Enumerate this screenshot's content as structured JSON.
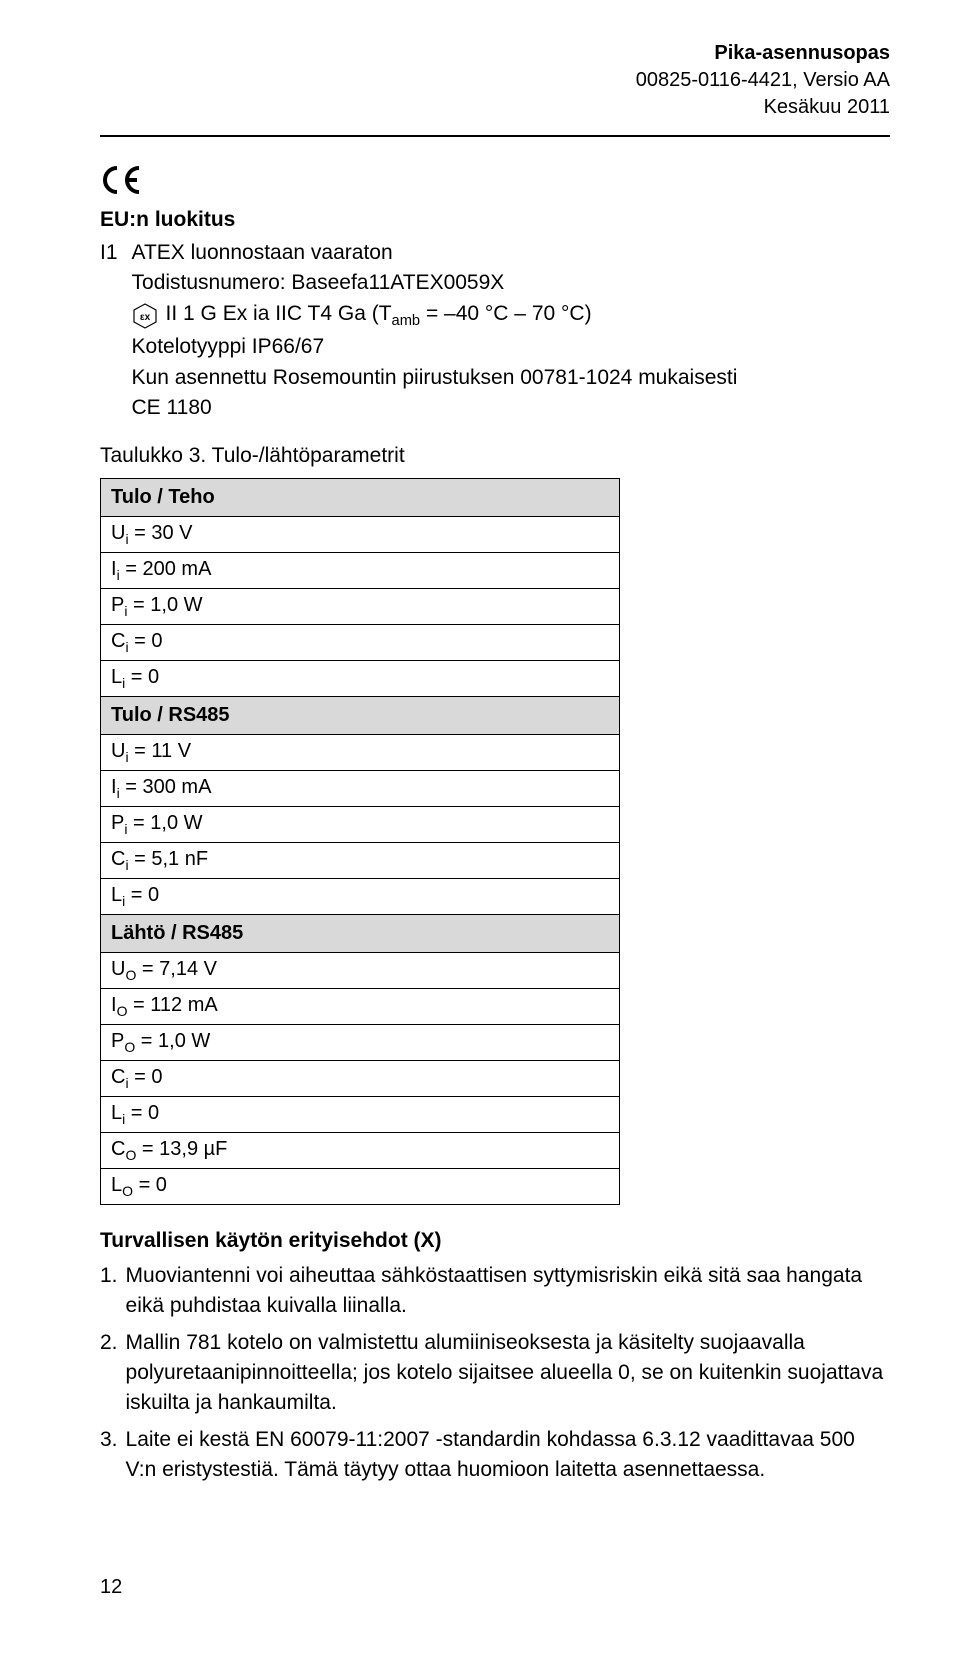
{
  "header": {
    "title": "Pika-asennusopas",
    "doc_number": "00825-0116-4421, Versio AA",
    "date": "Kesäkuu 2011"
  },
  "section_title": "EU:n luokitus",
  "cert": {
    "id": "I1",
    "line1": "ATEX luonnostaan vaaraton",
    "line2": "Todistusnumero: Baseefa11ATEX0059X",
    "ex_text": "II 1 G Ex ia IIC T4 Ga (T",
    "ex_sub": "amb",
    "ex_suffix": " = –40 °C – 70 °C)",
    "line4": "Kotelotyyppi IP66/67",
    "line5": "Kun asennettu Rosemountin piirustuksen 00781-1024 mukaisesti",
    "line6": "CE 1180"
  },
  "table": {
    "caption": "Taulukko 3. Tulo-/lähtöparametrit",
    "groups": [
      {
        "header": "Tulo / Teho",
        "rows": [
          {
            "sym": "U",
            "sub": "i",
            "val": " = 30 V"
          },
          {
            "sym": "I",
            "sub": "i",
            "val": " = 200 mA"
          },
          {
            "sym": "P",
            "sub": "i",
            "val": " = 1,0 W"
          },
          {
            "sym": "C",
            "sub": "i",
            "val": " = 0"
          },
          {
            "sym": "L",
            "sub": "i",
            "val": " = 0"
          }
        ]
      },
      {
        "header": "Tulo / RS485",
        "rows": [
          {
            "sym": "U",
            "sub": "i",
            "val": " = 11 V"
          },
          {
            "sym": "I",
            "sub": "i",
            "val": " = 300 mA"
          },
          {
            "sym": "P",
            "sub": "i",
            "val": " = 1,0 W"
          },
          {
            "sym": "C",
            "sub": "i",
            "val": " = 5,1 nF"
          },
          {
            "sym": "L",
            "sub": "i",
            "val": " = 0"
          }
        ]
      },
      {
        "header": "Lähtö / RS485",
        "rows": [
          {
            "sym": "U",
            "sub": "O",
            "val": " = 7,14 V"
          },
          {
            "sym": "I",
            "sub": "O",
            "val": " = 112 mA"
          },
          {
            "sym": "P",
            "sub": "O",
            "val": " = 1,0 W"
          },
          {
            "sym": "C",
            "sub": "i",
            "val": " = 0"
          },
          {
            "sym": "L",
            "sub": "i",
            "val": " = 0"
          },
          {
            "sym": "C",
            "sub": "O",
            "val": " = 13,9 µF"
          },
          {
            "sym": "L",
            "sub": "O",
            "val": " = 0"
          }
        ]
      }
    ]
  },
  "notes": {
    "title": "Turvallisen käytön erityisehdot (X)",
    "items": [
      {
        "num": "1.",
        "text": "Muoviantenni voi aiheuttaa sähköstaattisen syttymisriskin eikä sitä saa hangata eikä puhdistaa kuivalla liinalla."
      },
      {
        "num": "2.",
        "text": "Mallin 781 kotelo on valmistettu alumiiniseoksesta ja käsitelty suojaavalla polyuretaanipinnoitteella; jos kotelo sijaitsee alueella 0, se on kuitenkin suojattava iskuilta ja hankaumilta."
      },
      {
        "num": "3.",
        "text": "Laite ei kestä EN 60079-11:2007 -standardin kohdassa 6.3.12 vaadittavaa 500 V:n eristystestiä. Tämä täytyy ottaa huomioon laitetta asennettaessa."
      }
    ]
  },
  "page_number": "12"
}
